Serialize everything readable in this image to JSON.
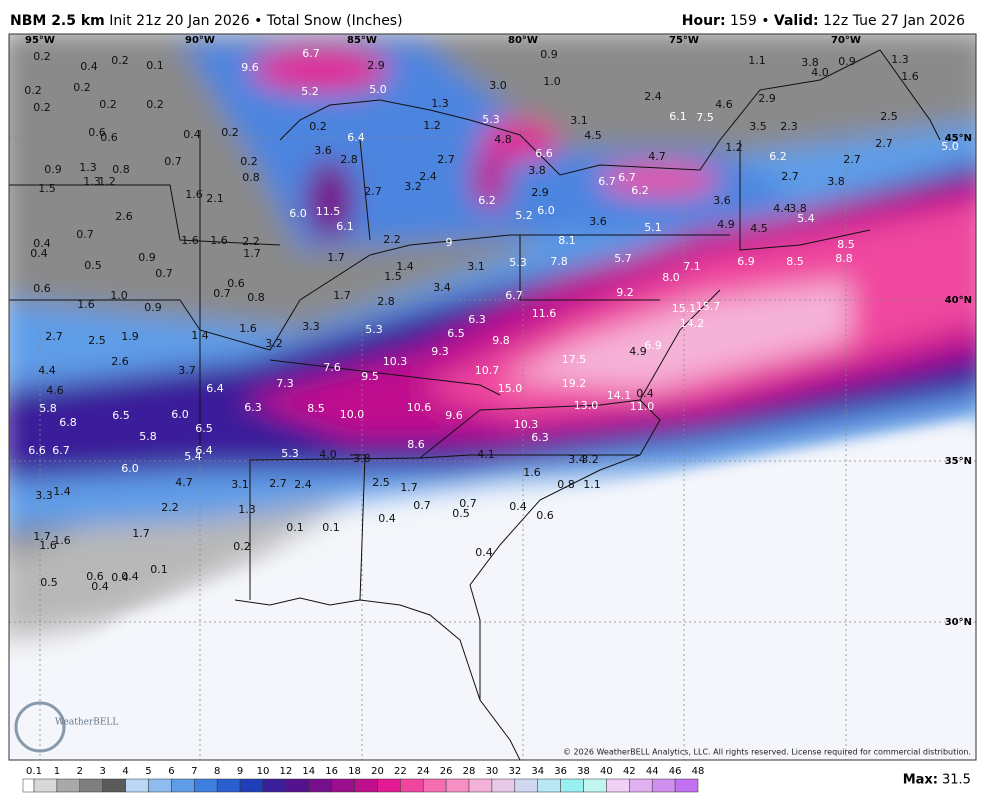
{
  "header": {
    "model": "NBM 2.5 km",
    "init": "Init 21z 20 Jan 2026",
    "separator": "•",
    "product": "Total Snow (Inches)",
    "hour_label": "Hour:",
    "hour": "159",
    "valid_label": "Valid:",
    "valid": "12z Tue 27 Jan 2026"
  },
  "map": {
    "lon_labels": [
      "95°W",
      "90°W",
      "85°W",
      "80°W",
      "75°W",
      "70°W"
    ],
    "lat_labels": [
      "45°N",
      "40°N",
      "35°N",
      "30°N"
    ],
    "labels": [
      "0.2",
      "0.4",
      "0.2",
      "0.1",
      "6.7",
      "9.6",
      "2.9",
      "5.2",
      "5.0",
      "0.9",
      "1.0",
      "3.0",
      "1.1",
      "3.8",
      "4.0",
      "0.9",
      "1.3",
      "1.6",
      "0.2",
      "0.2",
      "0.2",
      "0.2",
      "0.2",
      "1.3",
      "2.4",
      "2.9",
      "4.6",
      "0.6",
      "0.6",
      "0.4",
      "0.2",
      "0.2",
      "1.2",
      "5.3",
      "3.1",
      "6.1",
      "7.5",
      "3.5",
      "2.3",
      "2.5",
      "6.4",
      "4.8",
      "4.5",
      "2.7",
      "5.0",
      "3.6",
      "2.8",
      "2.7",
      "6.6",
      "4.7",
      "1.2",
      "6.2",
      "2.7",
      "0.9",
      "1.3",
      "0.8",
      "0.7",
      "0.2",
      "0.8",
      "2.4",
      "3.8",
      "6.7",
      "6.7",
      "6.2",
      "2.7",
      "3.8",
      "1.3",
      "1.2",
      "1.5",
      "1.6",
      "2.1",
      "2.7",
      "3.2",
      "6.2",
      "2.9",
      "3.6",
      "6.0",
      "11.5",
      "6.1",
      "5.2",
      "6.0",
      "3.6",
      "5.1",
      "4.9",
      "4.4",
      "3.8",
      "5.4",
      "2.6",
      "0.7",
      "0.4",
      "0.4",
      "1.6",
      "1.6",
      "2.2",
      "1.7",
      "2.2",
      "9",
      "8.1",
      "4.5",
      "8.5",
      "8.8",
      "0.9",
      "0.5",
      "1.7",
      "1.4",
      "3.1",
      "5.3",
      "7.8",
      "5.7",
      "6.9",
      "8.5",
      "7.1",
      "0.7",
      "0.6",
      "1.5",
      "8.0",
      "1.6",
      "1.0",
      "0.6",
      "0.7",
      "0.8",
      "1.7",
      "2.8",
      "3.4",
      "9.2",
      "0.9",
      "6.7",
      "15.1",
      "15.7",
      "11.6",
      "6.3",
      "14.2",
      "2.7",
      "2.5",
      "1.9",
      "1.4",
      "1.6",
      "3.3",
      "5.3",
      "6.5",
      "9.8",
      "3.2",
      "17.5",
      "9.3",
      "10.3",
      "4.9",
      "6.9",
      "2.6",
      "4.4",
      "7.6",
      "10.7",
      "3.7",
      "9.5",
      "7.3",
      "19.2",
      "15.0",
      "6.4",
      "4.6",
      "14.1",
      "0.4",
      "5.8",
      "6.3",
      "8.5",
      "10.0",
      "10.6",
      "13.0",
      "11.0",
      "6.5",
      "6.0",
      "9.6",
      "6.8",
      "6.5",
      "10.3",
      "5.8",
      "6.3",
      "8.6",
      "6.6",
      "6.7",
      "6.4",
      "5.4",
      "5.3",
      "4.0",
      "3.8",
      "4.1",
      "3.4",
      "3.2",
      "6.0",
      "1.6",
      "4.7",
      "3.1",
      "2.7",
      "2.4",
      "2.5",
      "1.7",
      "0.8",
      "1.1",
      "3.3",
      "1.4",
      "0.7",
      "0.7",
      "0.5",
      "0.4",
      "2.2",
      "1.3",
      "0.4",
      "0.6",
      "0.1",
      "0.1",
      "1.7",
      "1.7",
      "1.6",
      "1.6",
      "0.2",
      "0.4",
      "0.1",
      "0.6",
      "0.4",
      "0.4",
      "0.5",
      "0.4"
    ],
    "copyright": "© 2026 WeatherBELL Analytics, LLC. All rights reserved. License required for commercial distribution.",
    "logo": "WeatherBELL"
  },
  "legend": {
    "ticks": [
      "0.1",
      "1",
      "2",
      "3",
      "4",
      "5",
      "6",
      "7",
      "8",
      "9",
      "10",
      "12",
      "14",
      "16",
      "18",
      "20",
      "22",
      "24",
      "26",
      "28",
      "30",
      "32",
      "34",
      "36",
      "38",
      "40",
      "42",
      "44",
      "46",
      "48"
    ],
    "colors": [
      "#ffffff",
      "#d8d8d8",
      "#a8a8a8",
      "#7f7f7f",
      "#5a5a5a",
      "#bcd7f5",
      "#8fbcef",
      "#5f9de8",
      "#3d7ee0",
      "#2a5fd0",
      "#1f3fb8",
      "#3a1f9a",
      "#55128f",
      "#76108a",
      "#9b0f8c",
      "#c00f8e",
      "#e31a93",
      "#f0469f",
      "#f56db0",
      "#f58fc4",
      "#f5b2d8",
      "#e8c8e8",
      "#d0d8f0",
      "#b8e8f5",
      "#98f0f0",
      "#c0f5f0",
      "#f0d0f5",
      "#e0b0f0",
      "#d090f0",
      "#c070f0"
    ],
    "max_label": "Max:",
    "max": "31.5"
  }
}
